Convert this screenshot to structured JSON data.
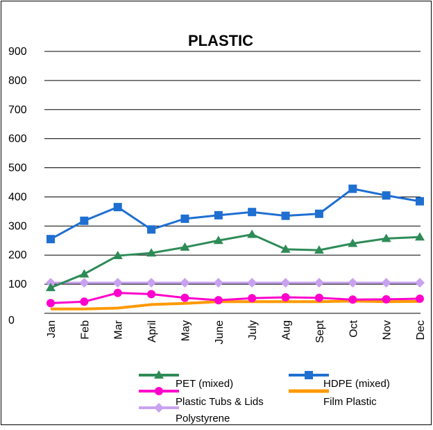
{
  "chart_data": {
    "type": "line",
    "title": "PLASTIC",
    "xlabel": "",
    "ylabel": "",
    "ylim": [
      0,
      900
    ],
    "yticks": [
      0,
      100,
      200,
      300,
      400,
      500,
      600,
      700,
      800,
      900
    ],
    "grid": true,
    "legend_position": "bottom",
    "categories": [
      "Jan",
      "Feb",
      "Mar",
      "April",
      "May",
      "June",
      "July",
      "Aug",
      "Sept",
      "Oct",
      "Nov",
      "Dec"
    ],
    "series": [
      {
        "name": "PET (mixed)",
        "color": "#2e8b57",
        "marker": "triangle",
        "values": [
          88,
          135,
          198,
          207,
          227,
          250,
          271,
          220,
          217,
          240,
          257,
          262
        ]
      },
      {
        "name": "HDPE (mixed)",
        "color": "#1f6fd1",
        "marker": "square",
        "values": [
          255,
          318,
          365,
          288,
          325,
          337,
          348,
          335,
          342,
          428,
          405,
          385
        ]
      },
      {
        "name": "Plastic Tubs & Lids",
        "color": "#ff00cc",
        "marker": "circle",
        "values": [
          35,
          40,
          70,
          66,
          53,
          45,
          52,
          55,
          53,
          47,
          48,
          50
        ]
      },
      {
        "name": "Film Plastic",
        "color": "#ff9900",
        "marker": "none",
        "values": [
          15,
          15,
          18,
          30,
          34,
          40,
          40,
          40,
          40,
          42,
          40,
          41
        ]
      },
      {
        "name": "Polystyrene",
        "color": "#c8a2f0",
        "marker": "diamond",
        "values": [
          105,
          105,
          105,
          105,
          105,
          105,
          105,
          105,
          105,
          105,
          105,
          105
        ]
      }
    ]
  }
}
